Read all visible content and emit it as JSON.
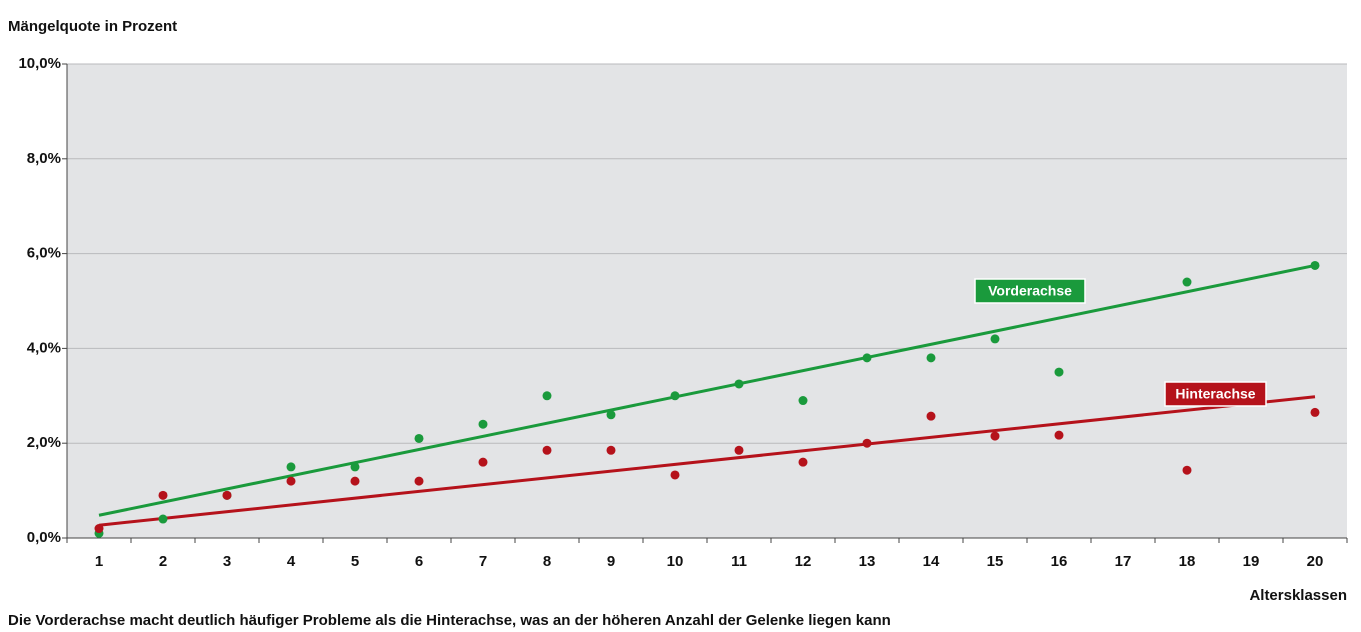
{
  "chart_data": {
    "type": "scatter",
    "title": "Mängelquote in Prozent",
    "x_label": "Altersklassen",
    "caption": "Die Vorderachse macht deutlich häufiger Probleme als die Hinterachse, was an der höheren Anzahl der Gelenke liegen kann",
    "x": [
      1,
      2,
      3,
      4,
      5,
      6,
      7,
      8,
      9,
      10,
      11,
      12,
      13,
      14,
      15,
      16,
      17,
      18,
      19,
      20
    ],
    "xlim": [
      0.5,
      20.5
    ],
    "xticks": [
      1,
      2,
      3,
      4,
      5,
      6,
      7,
      8,
      9,
      10,
      11,
      12,
      13,
      14,
      15,
      16,
      17,
      18,
      19,
      20
    ],
    "ylim": [
      0,
      10
    ],
    "yticks": [
      {
        "value": 0,
        "label": "0,0%"
      },
      {
        "value": 2,
        "label": "2,0%"
      },
      {
        "value": 4,
        "label": "4,0%"
      },
      {
        "value": 6,
        "label": "6,0%"
      },
      {
        "value": 8,
        "label": "8,0%"
      },
      {
        "value": 10,
        "label": "10,0%"
      }
    ],
    "grid": true,
    "series": [
      {
        "name": "Vorderachse",
        "color": "#1a9a3c",
        "values": [
          0.1,
          0.4,
          0.9,
          1.5,
          1.5,
          2.1,
          2.4,
          3.0,
          2.6,
          3.0,
          3.25,
          2.9,
          3.8,
          3.8,
          4.2,
          3.5,
          null,
          5.4,
          null,
          5.75
        ],
        "trendline": [
          0.48,
          5.75
        ]
      },
      {
        "name": "Hinterachse",
        "color": "#b5121b",
        "values": [
          0.2,
          0.9,
          0.9,
          1.2,
          1.2,
          1.2,
          1.6,
          1.85,
          1.85,
          1.33,
          1.85,
          1.6,
          2.0,
          2.57,
          2.15,
          2.17,
          null,
          1.43,
          null,
          2.65
        ],
        "trendline": [
          0.27,
          2.98
        ]
      }
    ]
  }
}
